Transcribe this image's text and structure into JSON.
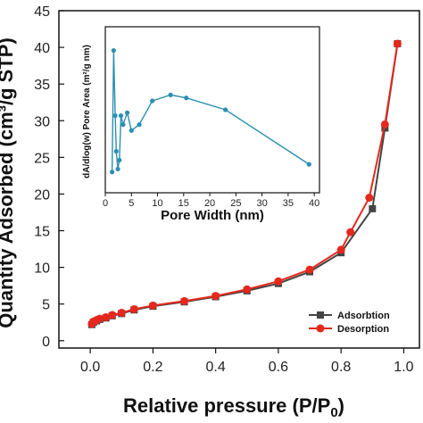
{
  "chart_data": [
    {
      "type": "line",
      "title": "",
      "xlabel": "Relative pressure (P/P",
      "xlabel_sub": "0",
      "xlabel_close": ")",
      "ylabel": "Quantity Adsorbed (cm³/g STP)",
      "xlim": [
        -0.1,
        1.05
      ],
      "ylim": [
        -1,
        45
      ],
      "xticks": [
        "0.0",
        "0.2",
        "0.4",
        "0.6",
        "0.8",
        "1.0"
      ],
      "xtick_values": [
        0,
        0.2,
        0.4,
        0.6,
        0.8,
        1.0
      ],
      "yticks": [
        "0",
        "5",
        "10",
        "15",
        "20",
        "25",
        "30",
        "35",
        "40",
        "45"
      ],
      "ytick_values": [
        0,
        5,
        10,
        15,
        20,
        25,
        30,
        35,
        40,
        45
      ],
      "legend_position": "bottom-right",
      "series": [
        {
          "name": "Adsorbtion",
          "color": "#444444",
          "marker": "square",
          "x": [
            0.005,
            0.01,
            0.02,
            0.03,
            0.05,
            0.07,
            0.1,
            0.14,
            0.2,
            0.3,
            0.4,
            0.5,
            0.6,
            0.7,
            0.8,
            0.9,
            0.94,
            0.98
          ],
          "y": [
            2.2,
            2.5,
            2.7,
            2.9,
            3.1,
            3.4,
            3.7,
            4.2,
            4.7,
            5.3,
            6.0,
            6.8,
            7.8,
            9.4,
            12.0,
            18.0,
            29.0,
            40.5
          ]
        },
        {
          "name": "Desorption",
          "color": "#e5281e",
          "marker": "circle",
          "x": [
            0.005,
            0.01,
            0.02,
            0.03,
            0.05,
            0.07,
            0.1,
            0.14,
            0.2,
            0.3,
            0.4,
            0.5,
            0.6,
            0.7,
            0.8,
            0.83,
            0.89,
            0.94,
            0.98
          ],
          "y": [
            2.3,
            2.6,
            2.8,
            3.0,
            3.2,
            3.5,
            3.8,
            4.3,
            4.8,
            5.4,
            6.1,
            7.0,
            8.1,
            9.7,
            12.4,
            14.8,
            19.5,
            29.5,
            40.5
          ]
        }
      ]
    },
    {
      "type": "line",
      "xlabel": "Pore Width (nm)",
      "ylabel": "dA/dlog(w) Pore Area (m²/g nm)",
      "xlim": [
        0,
        41
      ],
      "ylim": [
        0,
        28
      ],
      "xticks": [
        "0",
        "5",
        "10",
        "15",
        "20",
        "25",
        "30",
        "35",
        "40"
      ],
      "xtick_values": [
        0,
        5,
        10,
        15,
        20,
        25,
        30,
        35,
        40
      ],
      "series": [
        {
          "color": "#2b8fb0",
          "marker": "circle",
          "x": [
            1.3,
            1.6,
            1.9,
            2.1,
            2.4,
            2.7,
            3.0,
            3.4,
            4.2,
            5.0,
            6.5,
            9.0,
            12.5,
            15.5,
            23.0,
            39.0
          ],
          "y": [
            3.5,
            24.0,
            13.0,
            7.0,
            4.0,
            5.5,
            13.0,
            11.5,
            13.5,
            10.5,
            11.5,
            15.5,
            16.5,
            16.0,
            14.0,
            4.8
          ]
        }
      ]
    }
  ]
}
